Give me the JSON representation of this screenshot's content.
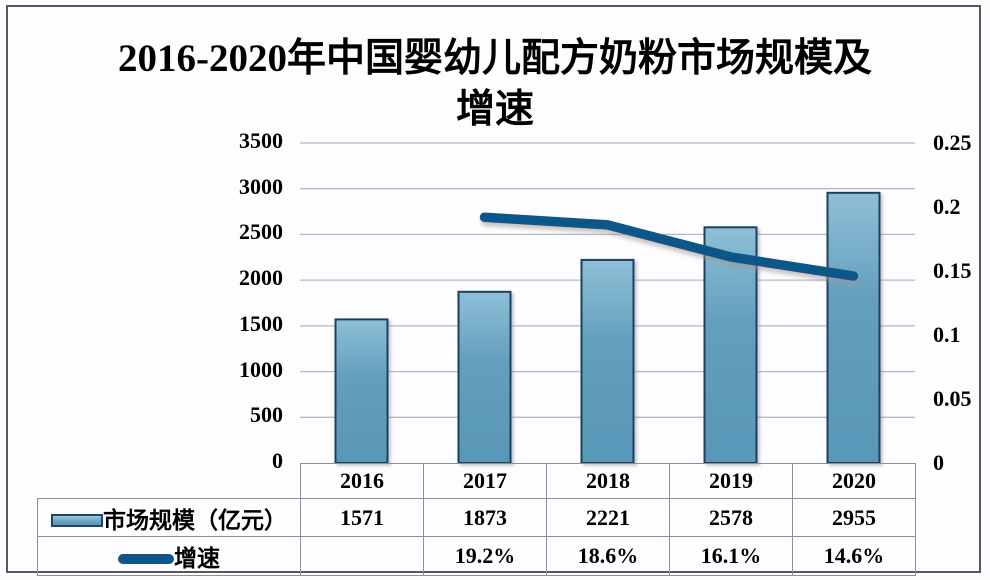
{
  "title": "2016-2020年中国婴幼儿配方奶粉市场规模及增速",
  "colors": {
    "background": "#fdfdff",
    "frame_border": "#55585c",
    "grid": "#b3bac0",
    "table_border": "#8a9095",
    "bar_fill_top": "#8ebfd6",
    "bar_fill_mid": "#639fbe",
    "bar_fill_bottom": "#5897b7",
    "bar_border": "#1c3f5e",
    "line": "#0e5689",
    "text": "#000000"
  },
  "chart_data": {
    "type": "bar+line",
    "title": "2016-2020年中国婴幼儿配方奶粉市场规模及增速",
    "categories": [
      "2016",
      "2017",
      "2018",
      "2019",
      "2020"
    ],
    "series": [
      {
        "name": "市场规模（亿元）",
        "type": "bar",
        "axis": "left",
        "values": [
          1571,
          1873,
          2221,
          2578,
          2955
        ]
      },
      {
        "name": "增速",
        "type": "line",
        "axis": "right",
        "values": [
          null,
          0.192,
          0.186,
          0.161,
          0.146
        ],
        "display_values": [
          "",
          "19.2%",
          "18.6%",
          "16.1%",
          "14.6%"
        ]
      }
    ],
    "left_axis": {
      "range": [
        0,
        3500
      ],
      "tick_step": 500,
      "ticks": [
        0,
        500,
        1000,
        1500,
        2000,
        2500,
        3000,
        3500
      ]
    },
    "right_axis": {
      "range": [
        0,
        0.25
      ],
      "tick_step": 0.05,
      "tick_labels": [
        "0",
        "0.05",
        "0.1",
        "0.15",
        "0.2",
        "0.25"
      ]
    },
    "grid": true,
    "legend_position": "bottom-table"
  },
  "table": {
    "year_header": [
      "2016",
      "2017",
      "2018",
      "2019",
      "2020"
    ],
    "rows": [
      {
        "label": "市场规模（亿元）",
        "swatch": "bar-swatch",
        "values": [
          "1571",
          "1873",
          "2221",
          "2578",
          "2955"
        ]
      },
      {
        "label": "增速",
        "swatch": "line-swatch",
        "values": [
          "",
          "19.2%",
          "18.6%",
          "16.1%",
          "14.6%"
        ]
      }
    ]
  }
}
